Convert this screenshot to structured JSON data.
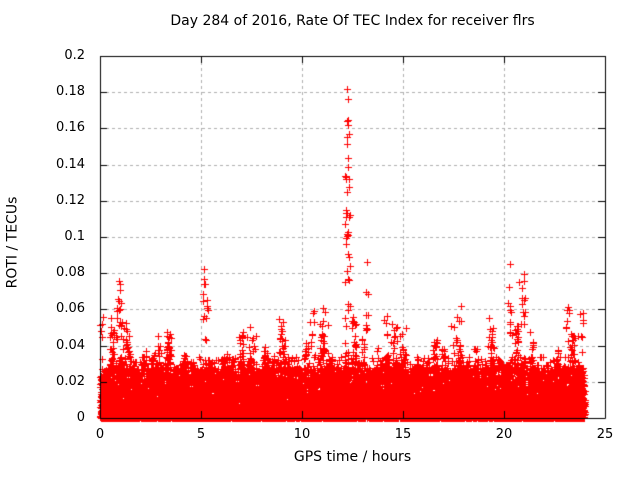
{
  "chart_data": {
    "type": "scatter",
    "title": "Day 284 of 2016, Rate Of TEC Index for receiver flrs",
    "xlabel": "GPS time / hours",
    "ylabel": "ROTI / TECUs",
    "xlim": [
      0,
      25
    ],
    "ylim": [
      0,
      0.2
    ],
    "xticks": [
      0,
      5,
      10,
      15,
      20,
      25
    ],
    "yticks": [
      0,
      0.02,
      0.04,
      0.06,
      0.08,
      0.1,
      0.12,
      0.14,
      0.16,
      0.18,
      0.2
    ],
    "xticklabels": [
      "0",
      "5",
      "10",
      "15",
      "20",
      "25"
    ],
    "yticklabels": [
      "0",
      "0.02",
      "0.04",
      "0.06",
      "0.08",
      "0.1",
      "0.12",
      "0.14",
      "0.16",
      "0.18",
      "0.2"
    ],
    "grid": true,
    "legend": "none",
    "marker": {
      "shape": "plus",
      "size": 7,
      "color": "#ff0000"
    },
    "grid_color": "#b0b0b0",
    "axis_color": "#000000",
    "background_color": "#ffffff",
    "data_x_range": [
      0,
      24
    ],
    "peak_point": {
      "x": 12.25,
      "y": 0.182
    },
    "envelope": {
      "x_step": 0.5,
      "values": [
        0.05,
        0.058,
        0.062,
        0.048,
        0.038,
        0.042,
        0.046,
        0.05,
        0.038,
        0.04,
        0.05,
        0.042,
        0.04,
        0.044,
        0.048,
        0.053,
        0.048,
        0.05,
        0.056,
        0.05,
        0.052,
        0.058,
        0.058,
        0.054,
        0.06,
        0.058,
        0.054,
        0.048,
        0.052,
        0.058,
        0.048,
        0.042,
        0.044,
        0.047,
        0.051,
        0.06,
        0.056,
        0.047,
        0.053,
        0.047,
        0.049,
        0.064,
        0.066,
        0.047,
        0.042,
        0.047,
        0.058,
        0.056,
        0.05
      ]
    },
    "spikes": [
      {
        "x": 0.08,
        "ymin": 0.028,
        "ymax": 0.057,
        "n": 7,
        "jitter": 0.06
      },
      {
        "x": 0.75,
        "ymin": 0.04,
        "ymax": 0.062,
        "n": 10,
        "jitter": 0.3
      },
      {
        "x": 0.95,
        "ymin": 0.045,
        "ymax": 0.075,
        "n": 12,
        "jitter": 0.15
      },
      {
        "x": 1.2,
        "ymin": 0.035,
        "ymax": 0.06,
        "n": 6,
        "jitter": 0.1
      },
      {
        "x": 2.9,
        "ymin": 0.03,
        "ymax": 0.047,
        "n": 7,
        "jitter": 0.15
      },
      {
        "x": 3.35,
        "ymin": 0.033,
        "ymax": 0.051,
        "n": 8,
        "jitter": 0.08
      },
      {
        "x": 5.15,
        "ymin": 0.042,
        "ymax": 0.082,
        "n": 10,
        "jitter": 0.07
      },
      {
        "x": 5.3,
        "ymin": 0.04,
        "ymax": 0.066,
        "n": 6,
        "jitter": 0.06
      },
      {
        "x": 7.5,
        "ymin": 0.032,
        "ymax": 0.056,
        "n": 9,
        "jitter": 0.25
      },
      {
        "x": 9.0,
        "ymin": 0.033,
        "ymax": 0.058,
        "n": 9,
        "jitter": 0.2
      },
      {
        "x": 10.5,
        "ymin": 0.035,
        "ymax": 0.061,
        "n": 9,
        "jitter": 0.2
      },
      {
        "x": 11.15,
        "ymin": 0.035,
        "ymax": 0.062,
        "n": 9,
        "jitter": 0.18
      },
      {
        "x": 12.25,
        "ymin": 0.05,
        "ymax": 0.145,
        "n": 34,
        "jitter": 0.13
      },
      {
        "x": 12.3,
        "ymin": 0.148,
        "ymax": 0.165,
        "n": 5,
        "jitter": 0.07
      },
      {
        "x": 13.2,
        "ymin": 0.045,
        "ymax": 0.07,
        "n": 8,
        "jitter": 0.08
      },
      {
        "x": 14.2,
        "ymin": 0.033,
        "ymax": 0.058,
        "n": 8,
        "jitter": 0.25
      },
      {
        "x": 15.0,
        "ymin": 0.03,
        "ymax": 0.05,
        "n": 6,
        "jitter": 0.2
      },
      {
        "x": 17.6,
        "ymin": 0.035,
        "ymax": 0.063,
        "n": 12,
        "jitter": 0.3
      },
      {
        "x": 19.3,
        "ymin": 0.033,
        "ymax": 0.056,
        "n": 8,
        "jitter": 0.15
      },
      {
        "x": 20.3,
        "ymin": 0.045,
        "ymax": 0.08,
        "n": 10,
        "jitter": 0.1
      },
      {
        "x": 20.9,
        "ymin": 0.045,
        "ymax": 0.077,
        "n": 12,
        "jitter": 0.15
      },
      {
        "x": 23.2,
        "ymin": 0.038,
        "ymax": 0.065,
        "n": 10,
        "jitter": 0.12
      },
      {
        "x": 23.8,
        "ymin": 0.035,
        "ymax": 0.058,
        "n": 8,
        "jitter": 0.12
      }
    ],
    "spike_points": [
      [
        12.22,
        0.182
      ],
      [
        12.26,
        0.176
      ],
      [
        12.3,
        0.162
      ],
      [
        12.24,
        0.155
      ],
      [
        13.22,
        0.086
      ],
      [
        20.32,
        0.085
      ],
      [
        0.95,
        0.0755
      ],
      [
        5.15,
        0.0825
      ],
      [
        21.0,
        0.0795
      ]
    ],
    "generator": {
      "seed": 2842016,
      "core": {
        "n": 9000,
        "ymax": 0.028,
        "power": 2.0
      },
      "texture": {
        "n": 5200,
        "power": 2.1,
        "clusters_per_hour": 2.5,
        "cluster_jitter": 0.11
      },
      "fine": {
        "n": 2600,
        "ymax": 0.034,
        "power": 2.4
      }
    }
  }
}
